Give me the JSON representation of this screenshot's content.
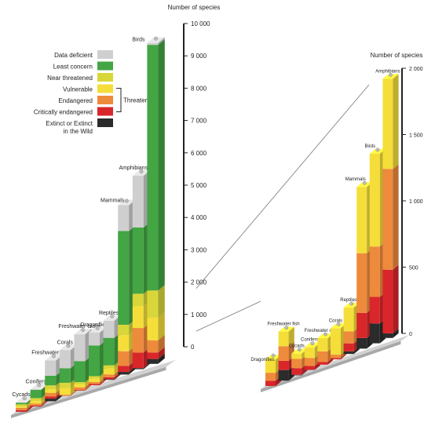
{
  "legend": {
    "items": [
      {
        "key": "dd",
        "label": "Data deficient",
        "color": "#cfcfcf"
      },
      {
        "key": "lc",
        "label": "Least concern",
        "color": "#43a543"
      },
      {
        "key": "nt",
        "label": "Near threatened",
        "color": "#d9d63a"
      },
      {
        "key": "vu",
        "label": "Vulnerable",
        "color": "#f5de3a"
      },
      {
        "key": "en",
        "label": "Endangered",
        "color": "#ee8a3c"
      },
      {
        "key": "cr",
        "label": "Critically endangered",
        "color": "#d9262a"
      },
      {
        "key": "ex",
        "label": "Extinct or Extinct in the Wild",
        "label_lines": [
          "Extinct or Extinct",
          "in the Wild"
        ],
        "color": "#2b2b2b"
      }
    ],
    "bracket_label": "Threatened"
  },
  "chart_data": [
    {
      "type": "bar",
      "stacked": true,
      "ylabel": "Number of species",
      "ylim": [
        0,
        10000
      ],
      "yticks": [
        0,
        1000,
        2000,
        3000,
        4000,
        5000,
        6000,
        7000,
        8000,
        9000,
        10000
      ],
      "ytick_labels": [
        "0",
        "1 000",
        "2 000",
        "3 000",
        "4 000",
        "5 000",
        "6 000",
        "7 000",
        "8 000",
        "9 000",
        "10 000"
      ],
      "categories": [
        "Cycads",
        "Conifers",
        "Freshwater fish",
        "Corals",
        "Freshwater crabs",
        "Dragonflies",
        "Reptiles",
        "Mammals",
        "Amphibians",
        "Birds"
      ],
      "category_labels": [
        "Cycads",
        "Conifers",
        "Freshwater fish",
        "Corals",
        "Freshwater crabs",
        "Dragonflies",
        "Reptiles",
        "Mammals",
        "Amphibians",
        "Birds"
      ],
      "series": [
        {
          "key": "ex",
          "name": "Extinct or Extinct in the Wild",
          "values": [
            4,
            1,
            80,
            0,
            0,
            0,
            20,
            80,
            35,
            150
          ]
        },
        {
          "key": "cr",
          "name": "Critically endangered",
          "values": [
            50,
            30,
            70,
            10,
            20,
            40,
            60,
            190,
            480,
            200
          ]
        },
        {
          "key": "en",
          "name": "Endangered",
          "values": [
            70,
            60,
            110,
            25,
            80,
            60,
            90,
            450,
            760,
            380
          ]
        },
        {
          "key": "vu",
          "name": "Vulnerable",
          "values": [
            40,
            80,
            110,
            200,
            100,
            100,
            180,
            500,
            680,
            700
          ]
        },
        {
          "key": "nt",
          "name": "Near threatened",
          "values": [
            70,
            90,
            120,
            170,
            60,
            80,
            100,
            320,
            380,
            840
          ]
        },
        {
          "key": "lc",
          "name": "Least concern",
          "values": [
            50,
            260,
            300,
            450,
            650,
            950,
            850,
            2900,
            2050,
            7600
          ]
        },
        {
          "key": "dd",
          "name": "Data deficient",
          "values": [
            3,
            10,
            470,
            560,
            830,
            400,
            530,
            800,
            1600,
            60
          ]
        }
      ]
    },
    {
      "type": "bar",
      "stacked": true,
      "ylabel": "Number of species",
      "ylim": [
        0,
        2000
      ],
      "yticks": [
        0,
        500,
        1000,
        1500,
        2000
      ],
      "ytick_labels": [
        "0",
        "500",
        "1 000",
        "1 500",
        "2 000"
      ],
      "categories": [
        "Dragonflies",
        "Freshwater fish",
        "Cycads",
        "Conifers",
        "Freshwater crabs",
        "Corals",
        "Reptiles",
        "Mammals",
        "Birds",
        "Amphibians"
      ],
      "category_labels": [
        "Dragonflies",
        "Freshwater fish",
        "Cycads",
        "Conifers",
        "Freshwater crabs",
        "Corals",
        "Reptiles",
        "Mammals",
        "Birds",
        "Amphibians"
      ],
      "series": [
        {
          "key": "ex",
          "name": "Extinct or Extinct in the Wild",
          "values": [
            0,
            80,
            4,
            1,
            0,
            0,
            20,
            80,
            150,
            35
          ]
        },
        {
          "key": "cr",
          "name": "Critically endangered",
          "values": [
            40,
            70,
            50,
            30,
            20,
            10,
            60,
            190,
            200,
            480
          ]
        },
        {
          "key": "en",
          "name": "Endangered",
          "values": [
            60,
            110,
            70,
            60,
            80,
            25,
            90,
            450,
            380,
            760
          ]
        },
        {
          "key": "vu",
          "name": "Vulnerable",
          "values": [
            100,
            110,
            40,
            80,
            100,
            200,
            180,
            500,
            700,
            680
          ]
        }
      ]
    }
  ]
}
